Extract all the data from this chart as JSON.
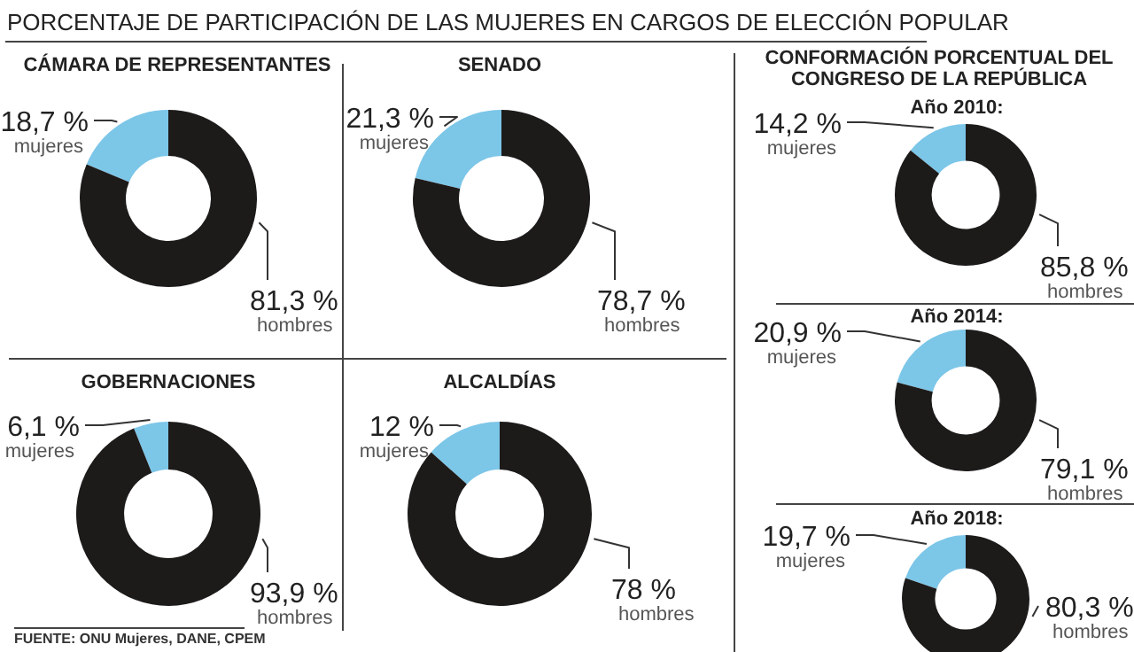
{
  "chart_data": [
    {
      "type": "other",
      "title": "PORCENTAJE DE PARTICIPACIÓN DE LAS MUJERES EN CARGOS DE ELECCIÓN POPULAR"
    },
    {
      "type": "donut",
      "title": "CÁMARA DE REPRESENTANTES",
      "categories": [
        "mujeres",
        "hombres"
      ],
      "values": [
        18.7,
        81.3
      ],
      "colors": [
        "#7cc6e8",
        "#1d1a1a"
      ],
      "value_labels": [
        "18,7 %",
        "81,3 %"
      ]
    },
    {
      "type": "donut",
      "title": "SENADO",
      "categories": [
        "mujeres",
        "hombres"
      ],
      "values": [
        21.3,
        78.7
      ],
      "colors": [
        "#7cc6e8",
        "#1d1a1a"
      ],
      "value_labels": [
        "21,3 %",
        "78,7 %"
      ]
    },
    {
      "type": "donut",
      "title": "GOBERNACIONES",
      "categories": [
        "mujeres",
        "hombres"
      ],
      "values": [
        6.1,
        93.9
      ],
      "colors": [
        "#7cc6e8",
        "#1d1a1a"
      ],
      "value_labels": [
        "6,1 %",
        "93,9 %"
      ]
    },
    {
      "type": "donut",
      "title": "ALCALDÍAS",
      "categories": [
        "mujeres",
        "hombres"
      ],
      "values": [
        12,
        78
      ],
      "colors": [
        "#7cc6e8",
        "#1d1a1a"
      ],
      "value_labels": [
        "12 %",
        "78 %"
      ]
    },
    {
      "type": "other",
      "title": "CONFORMACIÓN PORCENTUAL DEL CONGRESO DE LA REPÚBLICA"
    },
    {
      "type": "donut",
      "title": "Año 2010:",
      "categories": [
        "mujeres",
        "hombres"
      ],
      "values": [
        14.2,
        85.8
      ],
      "colors": [
        "#7cc6e8",
        "#1d1a1a"
      ],
      "value_labels": [
        "14,2 %",
        "85,8 %"
      ]
    },
    {
      "type": "donut",
      "title": "Año 2014:",
      "categories": [
        "mujeres",
        "hombres"
      ],
      "values": [
        20.9,
        79.1
      ],
      "colors": [
        "#7cc6e8",
        "#1d1a1a"
      ],
      "value_labels": [
        "20,9 %",
        "79,1 %"
      ]
    },
    {
      "type": "donut",
      "title": "Año 2018:",
      "categories": [
        "mujeres",
        "hombres"
      ],
      "values": [
        19.7,
        80.3
      ],
      "colors": [
        "#7cc6e8",
        "#1d1a1a"
      ],
      "value_labels": [
        "19,7 %",
        "80,3 %"
      ]
    },
    {
      "type": "other",
      "annotations": [
        "FUENTE: ONU Mujeres, DANE, CPEM"
      ]
    }
  ]
}
